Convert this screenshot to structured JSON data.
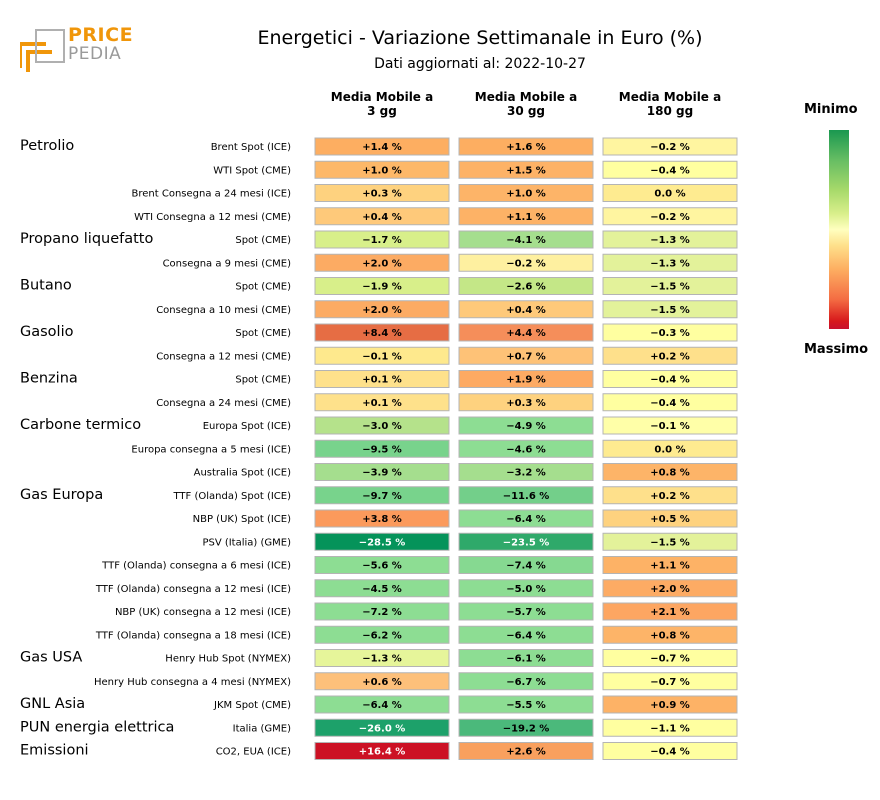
{
  "logo": {
    "line1": "PRICE",
    "line2": "PEDIA"
  },
  "title": "Energetici - Variazione Settimanale in Euro (%)",
  "subtitle": "Dati aggiornati al: 2022-10-27",
  "legend": {
    "min_label": "Minimo",
    "max_label": "Massimo"
  },
  "chart_data": {
    "type": "heatmap",
    "title": "Energetici - Variazione Settimanale in Euro (%)",
    "columns": [
      "Media Mobile a\n3 gg",
      "Media Mobile a\n30 gg",
      "Media Mobile a\n180 gg"
    ],
    "groups": [
      {
        "name": "Petrolio",
        "start": 0
      },
      {
        "name": "Propano liquefatto",
        "start": 4
      },
      {
        "name": "Butano",
        "start": 6
      },
      {
        "name": "Gasolio",
        "start": 8
      },
      {
        "name": "Benzina",
        "start": 10
      },
      {
        "name": "Carbone termico",
        "start": 12
      },
      {
        "name": "Gas Europa",
        "start": 15
      },
      {
        "name": "Gas USA",
        "start": 22
      },
      {
        "name": "GNL Asia",
        "start": 24
      },
      {
        "name": "PUN energia elettrica",
        "start": 25
      },
      {
        "name": "Emissioni",
        "start": 26
      }
    ],
    "rows": [
      {
        "label": "Brent Spot (ICE)",
        "values": [
          1.4,
          1.6,
          -0.2
        ],
        "text": [
          "+1.4 %",
          "+1.6 %",
          "−0.2 %"
        ]
      },
      {
        "label": "WTI Spot (CME)",
        "values": [
          1.0,
          1.5,
          -0.4
        ],
        "text": [
          "+1.0 %",
          "+1.5 %",
          "−0.4 %"
        ]
      },
      {
        "label": "Brent Consegna a 24 mesi (ICE)",
        "values": [
          0.3,
          1.0,
          0.0
        ],
        "text": [
          "+0.3 %",
          "+1.0 %",
          "0.0 %"
        ]
      },
      {
        "label": "WTI Consegna a 12 mesi (CME)",
        "values": [
          0.4,
          1.1,
          -0.2
        ],
        "text": [
          "+0.4 %",
          "+1.1 %",
          "−0.2 %"
        ]
      },
      {
        "label": "Spot (CME)",
        "values": [
          -1.7,
          -4.1,
          -1.3
        ],
        "text": [
          "−1.7 %",
          "−4.1 %",
          "−1.3 %"
        ]
      },
      {
        "label": "Consegna a 9 mesi (CME)",
        "values": [
          2.0,
          -0.2,
          -1.3
        ],
        "text": [
          "+2.0 %",
          "−0.2 %",
          "−1.3 %"
        ]
      },
      {
        "label": "Spot (CME)",
        "values": [
          -1.9,
          -2.6,
          -1.5
        ],
        "text": [
          "−1.9 %",
          "−2.6 %",
          "−1.5 %"
        ]
      },
      {
        "label": "Consegna a 10 mesi (CME)",
        "values": [
          2.0,
          0.4,
          -1.5
        ],
        "text": [
          "+2.0 %",
          "+0.4 %",
          "−1.5 %"
        ]
      },
      {
        "label": "Spot (CME)",
        "values": [
          8.4,
          4.4,
          -0.3
        ],
        "text": [
          "+8.4 %",
          "+4.4 %",
          "−0.3 %"
        ]
      },
      {
        "label": "Consegna a 12 mesi (CME)",
        "values": [
          -0.1,
          0.7,
          0.2
        ],
        "text": [
          "−0.1 %",
          "+0.7 %",
          "+0.2 %"
        ]
      },
      {
        "label": "Spot (CME)",
        "values": [
          0.1,
          1.9,
          -0.4
        ],
        "text": [
          "+0.1 %",
          "+1.9 %",
          "−0.4 %"
        ]
      },
      {
        "label": "Consegna a 24 mesi (CME)",
        "values": [
          0.1,
          0.3,
          -0.4
        ],
        "text": [
          "+0.1 %",
          "+0.3 %",
          "−0.4 %"
        ]
      },
      {
        "label": "Europa Spot (ICE)",
        "values": [
          -3.0,
          -4.9,
          -0.1
        ],
        "text": [
          "−3.0 %",
          "−4.9 %",
          "−0.1 %"
        ]
      },
      {
        "label": "Europa consegna a 5 mesi (ICE)",
        "values": [
          -9.5,
          -4.6,
          0.0
        ],
        "text": [
          "−9.5 %",
          "−4.6 %",
          "0.0 %"
        ]
      },
      {
        "label": "Australia Spot (ICE)",
        "values": [
          -3.9,
          -3.2,
          0.8
        ],
        "text": [
          "−3.9 %",
          "−3.2 %",
          "+0.8 %"
        ]
      },
      {
        "label": "TTF (Olanda) Spot (ICE)",
        "values": [
          -9.7,
          -11.6,
          0.2
        ],
        "text": [
          "−9.7 %",
          "−11.6 %",
          "+0.2 %"
        ]
      },
      {
        "label": "NBP (UK) Spot (ICE)",
        "values": [
          3.8,
          -6.4,
          0.5
        ],
        "text": [
          "+3.8 %",
          "−6.4 %",
          "+0.5 %"
        ]
      },
      {
        "label": "PSV (Italia) (GME)",
        "values": [
          -28.5,
          -23.5,
          -1.5
        ],
        "text": [
          "−28.5 %",
          "−23.5 %",
          "−1.5 %"
        ]
      },
      {
        "label": "TTF (Olanda) consegna a 6 mesi (ICE)",
        "values": [
          -5.6,
          -7.4,
          1.1
        ],
        "text": [
          "−5.6 %",
          "−7.4 %",
          "+1.1 %"
        ]
      },
      {
        "label": "TTF (Olanda) consegna a 12 mesi (ICE)",
        "values": [
          -4.5,
          -5.0,
          2.0
        ],
        "text": [
          "−4.5 %",
          "−5.0 %",
          "+2.0 %"
        ]
      },
      {
        "label": "NBP (UK) consegna a 12 mesi (ICE)",
        "values": [
          -7.2,
          -5.7,
          2.1
        ],
        "text": [
          "−7.2 %",
          "−5.7 %",
          "+2.1 %"
        ]
      },
      {
        "label": "TTF (Olanda) consegna a 18 mesi (ICE)",
        "values": [
          -6.2,
          -6.4,
          0.8
        ],
        "text": [
          "−6.2 %",
          "−6.4 %",
          "+0.8 %"
        ]
      },
      {
        "label": "Henry Hub Spot (NYMEX)",
        "values": [
          -1.3,
          -6.1,
          -0.7
        ],
        "text": [
          "−1.3 %",
          "−6.1 %",
          "−0.7 %"
        ]
      },
      {
        "label": "Henry Hub consegna a 4 mesi (NYMEX)",
        "values": [
          0.6,
          -6.7,
          -0.7
        ],
        "text": [
          "+0.6 %",
          "−6.7 %",
          "−0.7 %"
        ]
      },
      {
        "label": "JKM Spot (CME)",
        "values": [
          -6.4,
          -5.5,
          0.9
        ],
        "text": [
          "−6.4 %",
          "−5.5 %",
          "+0.9 %"
        ]
      },
      {
        "label": "Italia (GME)",
        "values": [
          -26.0,
          -19.2,
          -1.1
        ],
        "text": [
          "−26.0 %",
          "−19.2 %",
          "−1.1 %"
        ]
      },
      {
        "label": "CO2, EUA (ICE)",
        "values": [
          16.4,
          2.6,
          -0.4
        ],
        "text": [
          "+16.4 %",
          "+2.6 %",
          "−0.4 %"
        ]
      }
    ],
    "colors": [
      [
        "#fdae61",
        "#fdae61",
        "#fff5a0"
      ],
      [
        "#fdb868",
        "#fdb266",
        "#ffffa0"
      ],
      [
        "#fed27f",
        "#fdb468",
        "#feeb90"
      ],
      [
        "#fec97a",
        "#fdb266",
        "#fff5a0"
      ],
      [
        "#d8ef8a",
        "#a5de8e",
        "#e3f29a"
      ],
      [
        "#fcab63",
        "#fef0a0",
        "#e3f29a"
      ],
      [
        "#d8ef8a",
        "#c4e787",
        "#e3f29a"
      ],
      [
        "#fcab63",
        "#fec97a",
        "#e3f29a"
      ],
      [
        "#e66d44",
        "#f58e5a",
        "#ffffa0"
      ],
      [
        "#fee98d",
        "#fec277",
        "#fee08b"
      ],
      [
        "#fee18b",
        "#fdaa63",
        "#ffffa0"
      ],
      [
        "#fee18b",
        "#fed27f",
        "#ffffa0"
      ],
      [
        "#b5e28b",
        "#8ddd93",
        "#ffffa8"
      ],
      [
        "#78d38c",
        "#8ddd93",
        "#feeb90"
      ],
      [
        "#a5de8e",
        "#a5de8e",
        "#fdb468"
      ],
      [
        "#78d38c",
        "#73cf8a",
        "#fee08b"
      ],
      [
        "#fb9a5c",
        "#8ddd93",
        "#fed27f"
      ],
      [
        "#05935a",
        "#2fa96a",
        "#e3f29a"
      ],
      [
        "#8ddd93",
        "#86d991",
        "#fdb266"
      ],
      [
        "#8ddd93",
        "#8ddd93",
        "#fdab64"
      ],
      [
        "#8ddd93",
        "#8ddd93",
        "#fda662"
      ],
      [
        "#8ddd93",
        "#8ddd93",
        "#fdb468"
      ],
      [
        "#e6f59a",
        "#8ddd93",
        "#ffffa0"
      ],
      [
        "#fdc07a",
        "#8ddd93",
        "#ffffa0"
      ],
      [
        "#8ddd93",
        "#8ddd93",
        "#fdb266"
      ],
      [
        "#1da16a",
        "#4bb97b",
        "#ffffa0"
      ],
      [
        "#cc1124",
        "#f9a05e",
        "#ffffa0"
      ]
    ],
    "scale": {
      "low_label": "Minimo",
      "high_label": "Massimo"
    }
  }
}
